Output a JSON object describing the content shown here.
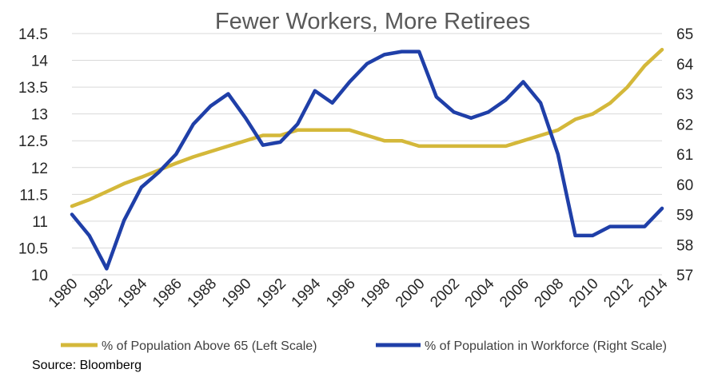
{
  "chart_data": {
    "type": "line",
    "title": "Fewer Workers, More Retirees",
    "x": [
      1980,
      1981,
      1982,
      1983,
      1984,
      1985,
      1986,
      1987,
      1988,
      1989,
      1990,
      1991,
      1992,
      1993,
      1994,
      1995,
      1996,
      1997,
      1998,
      1999,
      2000,
      2001,
      2002,
      2003,
      2004,
      2005,
      2006,
      2007,
      2008,
      2009,
      2010,
      2011,
      2012,
      2013,
      2014
    ],
    "x_tick_labels": [
      "1980",
      "1982",
      "1984",
      "1986",
      "1988",
      "1990",
      "1992",
      "1994",
      "1996",
      "1998",
      "2000",
      "2002",
      "2004",
      "2006",
      "2008",
      "2010",
      "2012",
      "2014"
    ],
    "y_left_ticks": [
      "10",
      "10.5",
      "11",
      "11.5",
      "12",
      "12.5",
      "13",
      "13.5",
      "14",
      "14.5"
    ],
    "y_right_ticks": [
      "57",
      "58",
      "59",
      "60",
      "61",
      "62",
      "63",
      "64",
      "65"
    ],
    "ylim_left": [
      10,
      14.5
    ],
    "ylim_right": [
      57,
      65
    ],
    "grid": true,
    "legend_position": "bottom",
    "series": [
      {
        "name": "% of Population Above 65 (Left Scale)",
        "axis": "left",
        "color": "#d4b83a",
        "values": [
          11.28,
          11.4,
          11.55,
          11.7,
          11.82,
          11.95,
          12.08,
          12.2,
          12.3,
          12.4,
          12.5,
          12.6,
          12.6,
          12.7,
          12.7,
          12.7,
          12.7,
          12.6,
          12.5,
          12.5,
          12.4,
          12.4,
          12.4,
          12.4,
          12.4,
          12.4,
          12.5,
          12.6,
          12.7,
          12.9,
          13.0,
          13.2,
          13.5,
          13.9,
          14.2
        ]
      },
      {
        "name": "% of Population in Workforce (Right Scale)",
        "axis": "right",
        "color": "#1f3fa8",
        "values": [
          59.0,
          58.3,
          57.2,
          58.8,
          59.9,
          60.4,
          61.0,
          62.0,
          62.6,
          63.0,
          62.2,
          61.3,
          61.4,
          62.0,
          63.1,
          62.7,
          63.4,
          64.0,
          64.3,
          64.4,
          64.4,
          62.9,
          62.4,
          62.2,
          62.4,
          62.8,
          63.4,
          62.7,
          61.0,
          58.3,
          58.3,
          58.6,
          58.6,
          58.6,
          59.2
        ]
      }
    ]
  },
  "source_text": "Source: Bloomberg"
}
